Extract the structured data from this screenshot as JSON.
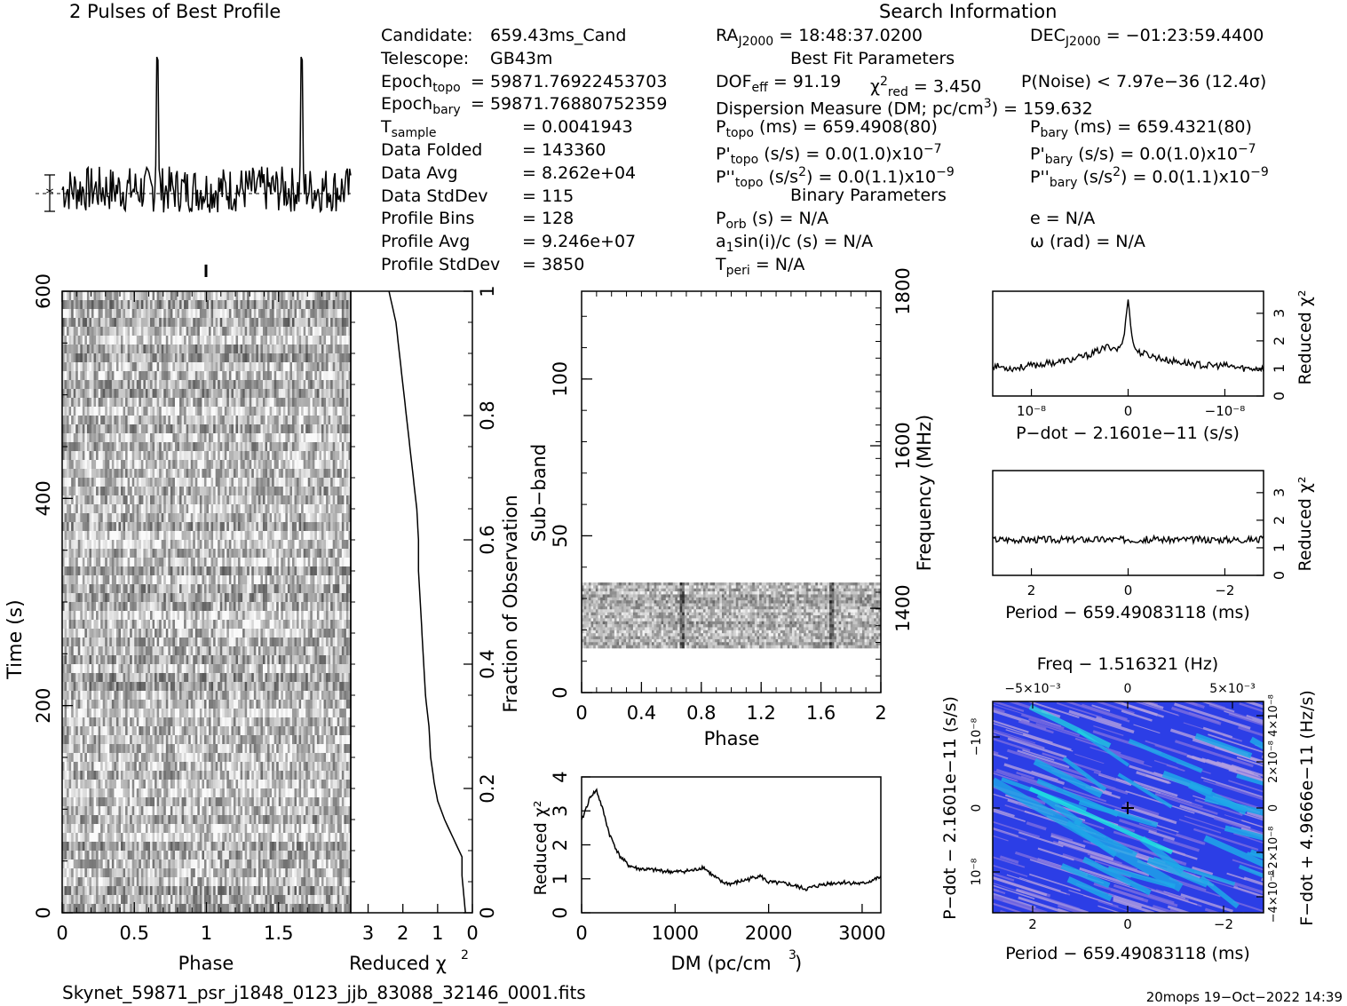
{
  "header": {
    "profile_title": "2 Pulses of Best Profile",
    "search_title": "Search Information",
    "best_fit_title": "Best Fit Parameters",
    "binary_title": "Binary Parameters"
  },
  "info_left": [
    {
      "key": "Candidate:",
      "sub": "",
      "val": "659.43ms_Cand"
    },
    {
      "key": "Telescope:",
      "sub": "",
      "val": "GB43m"
    },
    {
      "key": "Epoch",
      "sub": "topo",
      "val": "= 59871.76922453703"
    },
    {
      "key": "Epoch",
      "sub": "bary",
      "val": "= 59871.76880752359"
    },
    {
      "key": "T",
      "sub": "sample",
      "val": "=   0.0041943"
    },
    {
      "key": "Data Folded",
      "sub": "",
      "val": "=   143360"
    },
    {
      "key": "Data Avg",
      "sub": "",
      "val": "=   8.262e+04"
    },
    {
      "key": "Data StdDev",
      "sub": "",
      "val": "=   115"
    },
    {
      "key": "Profile Bins",
      "sub": "",
      "val": "=   128"
    },
    {
      "key": "Profile Avg",
      "sub": "",
      "val": "=   9.246e+07"
    },
    {
      "key": "Profile StdDev",
      "sub": "",
      "val": "=   3850"
    }
  ],
  "info_right": {
    "ra": "RA",
    "ra_sub": "J2000",
    "ra_val": "= 18:48:37.0200",
    "dec": "DEC",
    "dec_sub": "J2000",
    "dec_val": "= −01:23:59.4400",
    "dof": "DOF",
    "dof_sub": "eff",
    "dof_val": "= 91.19",
    "chi": "χ",
    "chi_sub": "red",
    "chi_val": "= 3.450",
    "pnoise": "P(Noise) < 7.97e−36   (12.4σ)",
    "dm": "Dispersion Measure (DM; pc/cm",
    "dm_val": ") = 159.632",
    "ptopo": "P",
    "ptopo_sub": "topo",
    "ptopo_val": "(ms)  =   659.4908(80)",
    "pbary": "P",
    "pbary_sub": "bary",
    "pbary_val": "(ms)  =   659.4321(80)",
    "pdtopo_val": "(s/s) = 0.0(1.0)x10",
    "pdtopo_exp": "−7",
    "pdbary_val": "(s/s) = 0.0(1.0)x10",
    "pdbary_exp": "−7",
    "pddtopo_val": "(s/s",
    "pddtopo_val2": ") = 0.0(1.1)x10",
    "pddtopo_exp": "−9",
    "pddbary_val": ") = 0.0(1.1)x10",
    "pddbary_exp": "−9",
    "porb": "P",
    "porb_sub": "orb",
    "porb_val": "(s) = N/A",
    "e_val": "e = N/A",
    "a1": "a",
    "a1_sub": "1",
    "a1_val": "sin(i)/c (s) = N/A",
    "omega": "ω (rad) = N/A",
    "tperi": "T",
    "tperi_sub": "peri",
    "tperi_val": "= N/A"
  },
  "axes": {
    "time_label": "Time (s)",
    "phase_label": "Phase",
    "redchi_label": "Reduced χ",
    "fraction_label": "Fraction of Observation",
    "subband_label": "Sub−band",
    "frequency_label": "Frequency (MHz)",
    "dm_label": "DM (pc/cm",
    "pdot_label": "P−dot − 2.1601e−11 (s/s)",
    "period_label": "Period − 659.49083118 (ms)",
    "freq_label": "Freq − 1.516321 (Hz)",
    "fdot_label": "F−dot + 4.9666e−11 (Hz/s)"
  },
  "footer": {
    "filename": "Skynet_59871_psr_j1848_0123_jjb_83088_32146_0001.fits",
    "stamp": "20mops 19−Oct−2022 14:39"
  },
  "chart_data": [
    {
      "type": "line",
      "name": "profile",
      "title": "2 Pulses of Best Profile",
      "x": [
        0,
        0.2,
        0.4,
        0.5,
        0.55,
        0.6,
        0.65,
        0.7,
        0.8,
        1.0,
        1.2,
        1.4,
        1.5,
        1.55,
        1.6,
        1.65,
        1.7,
        1.8,
        2.0
      ],
      "y": [
        0.25,
        0.3,
        0.27,
        0.33,
        0.45,
        0.7,
        1.0,
        0.4,
        0.28,
        0.26,
        0.3,
        0.27,
        0.33,
        0.45,
        0.7,
        1.0,
        0.4,
        0.28,
        0.26
      ],
      "xlim": [
        0,
        2
      ]
    },
    {
      "type": "heatmap",
      "name": "time-phase",
      "xlabel": "Phase",
      "ylabel": "Time (s)",
      "xlim": [
        0,
        2
      ],
      "ylim": [
        0,
        600
      ],
      "xticks": [
        "0",
        "0.5",
        "1",
        "1.5"
      ],
      "yticks": [
        "0",
        "200",
        "400",
        "600"
      ]
    },
    {
      "type": "line",
      "name": "time-redchi",
      "xlabel": "Reduced χ²",
      "ylabel": "Fraction of Observation",
      "xticks": [
        "3",
        "2",
        "1",
        "0"
      ],
      "yticks": [
        "0",
        "0.2",
        "0.4",
        "0.6",
        "0.8",
        "1"
      ],
      "x": [
        0.2,
        0.25,
        0.3,
        0.3,
        0.55,
        0.8,
        1.0,
        1.1,
        1.2,
        1.25,
        1.35,
        1.4,
        1.45,
        1.5,
        1.55,
        1.55,
        1.6,
        1.7,
        1.8,
        1.9,
        2.0,
        2.1,
        2.2,
        2.4
      ],
      "y": [
        0,
        0.03,
        0.06,
        0.09,
        0.12,
        0.15,
        0.18,
        0.21,
        0.25,
        0.3,
        0.35,
        0.4,
        0.45,
        0.5,
        0.55,
        0.6,
        0.65,
        0.7,
        0.75,
        0.8,
        0.85,
        0.9,
        0.95,
        1.0
      ]
    },
    {
      "type": "heatmap",
      "name": "subband-phase",
      "xlabel": "Phase",
      "ylabel": "Sub−band",
      "xlim": [
        0,
        2
      ],
      "ylim": [
        0,
        128
      ],
      "xticks": [
        "0",
        "0.4",
        "0.8",
        "1.2",
        "1.6",
        "2"
      ],
      "yticks": [
        "0",
        "50",
        "100"
      ],
      "right_ticks": [
        "1400",
        "1600",
        "1800"
      ],
      "right_label": "Frequency (MHz)"
    },
    {
      "type": "line",
      "name": "dm-redchi",
      "xlabel": "DM (pc/cm³)",
      "ylabel": "Reduced χ²",
      "xlim": [
        0,
        3200
      ],
      "ylim": [
        0,
        4
      ],
      "xticks": [
        "0",
        "1000",
        "2000",
        "3000"
      ],
      "yticks": [
        "0",
        "1",
        "2",
        "3",
        "4"
      ],
      "x": [
        0,
        50,
        100,
        160,
        220,
        300,
        400,
        500,
        600,
        800,
        1000,
        1200,
        1300,
        1400,
        1500,
        1600,
        1800,
        1900,
        2000,
        2200,
        2400,
        2600,
        2800,
        3000,
        3200
      ],
      "y": [
        2.7,
        3.1,
        3.45,
        3.6,
        3.1,
        2.3,
        1.7,
        1.4,
        1.3,
        1.25,
        1.2,
        1.25,
        1.35,
        1.1,
        0.9,
        0.85,
        1.0,
        1.1,
        0.9,
        0.85,
        0.7,
        0.85,
        0.9,
        0.85,
        1.05
      ]
    },
    {
      "type": "line",
      "name": "pdot-redchi",
      "xlabel": "P−dot − 2.1601e−11 (s/s)",
      "ylabel": "Reduced χ²",
      "ylim": [
        0,
        3.8
      ],
      "xticks": [
        "10⁻⁸",
        "0",
        "−10⁻⁸"
      ],
      "yticks": [
        "0",
        "1",
        "2",
        "3"
      ],
      "x": [
        -1.4,
        -1.2,
        -1.0,
        -0.8,
        -0.6,
        -0.4,
        -0.2,
        -0.1,
        -0.05,
        0,
        0.05,
        0.1,
        0.2,
        0.4,
        0.6,
        0.8,
        1.0,
        1.2,
        1.4
      ],
      "y": [
        1.1,
        1.0,
        1.1,
        1.2,
        1.3,
        1.5,
        1.8,
        1.7,
        2.0,
        3.5,
        1.9,
        1.6,
        1.5,
        1.3,
        1.2,
        1.1,
        1.1,
        1.0,
        1.0
      ]
    },
    {
      "type": "line",
      "name": "period-redchi",
      "xlabel": "Period − 659.49083118 (ms)",
      "ylabel": "Reduced χ²",
      "ylim": [
        0,
        3.8
      ],
      "xticks": [
        "2",
        "0",
        "−2"
      ],
      "yticks": [
        "0",
        "1",
        "2",
        "3"
      ],
      "x": [
        2.8,
        2.4,
        2.0,
        1.6,
        1.3,
        1.0,
        0.7,
        0.4,
        0.2,
        0.05,
        0,
        -0.05,
        -0.2,
        -0.4,
        -0.8,
        -1.2,
        -1.6,
        -2.0,
        -2.4,
        -2.8
      ],
      "y": [
        1.3,
        1.0,
        1.2,
        1.5,
        1.9,
        1.3,
        0.9,
        1.1,
        1.5,
        2.5,
        3.5,
        2.4,
        1.3,
        0.9,
        1.2,
        1.1,
        1.1,
        1.0,
        1.1,
        1.0
      ]
    },
    {
      "type": "heatmap",
      "name": "period-pdot",
      "xlabel": "Period − 659.49083118 (ms)",
      "ylabel": "P−dot − 2.1601e−11 (s/s)",
      "top_label": "Freq − 1.516321 (Hz)",
      "right_label": "F−dot + 4.9666e−11 (Hz/s)",
      "xticks": [
        "2",
        "0",
        "−2"
      ],
      "yticks": [
        "10⁻⁸",
        "0",
        "−10⁻⁸"
      ],
      "top_ticks": [
        "−5×10⁻³",
        "0",
        "5×10⁻³"
      ],
      "right_ticks": [
        "−4×10⁻⁸",
        "−2×10⁻⁸",
        "0",
        "2×10⁻⁸",
        "4×10⁻⁸"
      ],
      "colors": [
        "#2c3ee6",
        "#7d6ee0",
        "#b39fe0",
        "#1ea8e8",
        "#20e0e0"
      ]
    }
  ]
}
